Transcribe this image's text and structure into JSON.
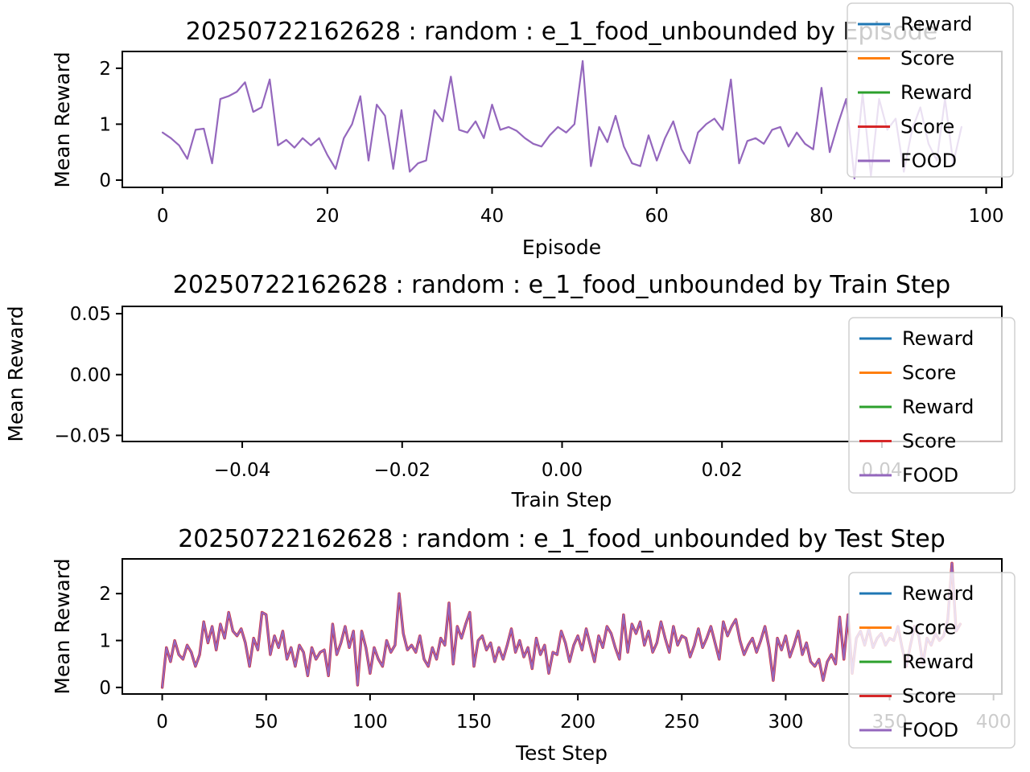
{
  "figure_title": "matplotlib reward figure",
  "chart_data": [
    {
      "type": "line",
      "title": "20250722162628 : random : e_1_food_unbounded by Episode",
      "xlabel": "Episode",
      "ylabel": "Mean Reward",
      "xlim": [
        -4.9,
        101.9
      ],
      "ylim": [
        -0.13,
        2.3
      ],
      "grid": false,
      "x_ticks": [
        {
          "v": 0,
          "label": "0"
        },
        {
          "v": 20,
          "label": "20"
        },
        {
          "v": 40,
          "label": "40"
        },
        {
          "v": 60,
          "label": "60"
        },
        {
          "v": 80,
          "label": "80"
        },
        {
          "v": 100,
          "label": "100"
        }
      ],
      "y_ticks": [
        {
          "v": 0,
          "label": "0"
        },
        {
          "v": 1,
          "label": "1"
        },
        {
          "v": 2,
          "label": "2"
        }
      ],
      "legend_position": "upper right",
      "series": [
        {
          "name": "Reward",
          "color": "#1f77b4",
          "values": []
        },
        {
          "name": "Score",
          "color": "#ff7f0e",
          "values": []
        },
        {
          "name": "Reward",
          "color": "#2ca02c",
          "values": []
        },
        {
          "name": "Score",
          "color": "#d62728",
          "values": []
        },
        {
          "name": "FOOD",
          "color": "#9467bd",
          "x_start": 0,
          "x_step": 1,
          "values": [
            0.85,
            0.75,
            0.62,
            0.38,
            0.9,
            0.92,
            0.3,
            1.45,
            1.5,
            1.58,
            1.75,
            1.22,
            1.3,
            1.8,
            0.62,
            0.72,
            0.58,
            0.75,
            0.62,
            0.75,
            0.45,
            0.2,
            0.75,
            1.0,
            1.5,
            0.35,
            1.35,
            1.15,
            0.2,
            1.25,
            0.15,
            0.3,
            0.35,
            1.25,
            1.05,
            1.85,
            0.9,
            0.85,
            1.05,
            0.75,
            1.35,
            0.9,
            0.95,
            0.88,
            0.75,
            0.65,
            0.6,
            0.8,
            0.95,
            0.85,
            1.0,
            2.13,
            0.25,
            0.95,
            0.68,
            1.15,
            0.6,
            0.3,
            0.25,
            0.8,
            0.35,
            0.75,
            1.05,
            0.55,
            0.3,
            0.85,
            1.0,
            1.1,
            0.9,
            1.8,
            0.3,
            0.7,
            0.75,
            0.65,
            0.9,
            0.95,
            0.6,
            0.85,
            0.65,
            0.55,
            1.65,
            0.5,
            1.0,
            1.45,
            0.03,
            1.55,
            0.08,
            1.45,
            0.9,
            1.1,
            0.15,
            0.9,
            1.3,
            0.65,
            0.35,
            1.45,
            0.3,
            0.95
          ]
        }
      ]
    },
    {
      "type": "line",
      "title": "20250722162628 : random : e_1_food_unbounded by Train Step",
      "xlabel": "Train Step",
      "ylabel": "Mean Reward",
      "xlim": [
        -0.055,
        0.055
      ],
      "ylim": [
        -0.055,
        0.056
      ],
      "grid": false,
      "x_ticks": [
        {
          "v": -0.04,
          "label": "−0.04"
        },
        {
          "v": -0.02,
          "label": "−0.02"
        },
        {
          "v": 0.0,
          "label": "0.00"
        },
        {
          "v": 0.02,
          "label": "0.02"
        },
        {
          "v": 0.04,
          "label": "0.04"
        }
      ],
      "y_ticks": [
        {
          "v": 0.05,
          "label": "0.05"
        },
        {
          "v": 0.0,
          "label": "0.00"
        },
        {
          "v": -0.05,
          "label": "−0.05"
        }
      ],
      "legend_position": "upper right",
      "series": [
        {
          "name": "Reward",
          "color": "#1f77b4",
          "values": []
        },
        {
          "name": "Score",
          "color": "#ff7f0e",
          "values": []
        },
        {
          "name": "Reward",
          "color": "#2ca02c",
          "values": []
        },
        {
          "name": "Score",
          "color": "#d62728",
          "values": []
        },
        {
          "name": "FOOD",
          "color": "#9467bd",
          "values": []
        }
      ]
    },
    {
      "type": "line",
      "title": "20250722162628 : random : e_1_food_unbounded by Test Step",
      "xlabel": "Test Step",
      "ylabel": "Mean Reward",
      "xlim": [
        -19.2,
        404.0
      ],
      "ylim": [
        -0.14,
        2.74
      ],
      "grid": false,
      "x_ticks": [
        {
          "v": 0,
          "label": "0"
        },
        {
          "v": 50,
          "label": "50"
        },
        {
          "v": 100,
          "label": "100"
        },
        {
          "v": 150,
          "label": "150"
        },
        {
          "v": 200,
          "label": "200"
        },
        {
          "v": 250,
          "label": "250"
        },
        {
          "v": 300,
          "label": "300"
        },
        {
          "v": 350,
          "label": "350"
        },
        {
          "v": 400,
          "label": "400"
        }
      ],
      "y_ticks": [
        {
          "v": 0,
          "label": "0"
        },
        {
          "v": 1,
          "label": "1"
        },
        {
          "v": 2,
          "label": "2"
        }
      ],
      "legend_position": "upper right",
      "series": [
        {
          "name": "Reward",
          "color": "#1f77b4",
          "values": []
        },
        {
          "name": "Score",
          "color": "#ff7f0e",
          "values": []
        },
        {
          "name": "Reward",
          "color": "#2ca02c",
          "values": []
        },
        {
          "name": "Score",
          "color": "#d62728",
          "same_as": 4,
          "values": []
        },
        {
          "name": "FOOD",
          "color": "#9467bd",
          "x_start": 0,
          "x_step": 2,
          "values": [
            0.0,
            0.85,
            0.55,
            1.0,
            0.7,
            0.6,
            0.9,
            0.75,
            0.45,
            0.7,
            1.4,
            0.95,
            1.3,
            0.8,
            1.35,
            1.05,
            1.6,
            1.2,
            1.1,
            1.25,
            0.95,
            0.45,
            1.05,
            0.8,
            1.6,
            1.55,
            0.7,
            1.1,
            0.85,
            1.2,
            0.6,
            0.85,
            0.45,
            0.9,
            0.75,
            0.25,
            0.85,
            0.6,
            0.75,
            0.8,
            0.25,
            1.35,
            0.7,
            0.95,
            1.3,
            0.85,
            1.2,
            0.05,
            1.2,
            0.85,
            0.3,
            0.85,
            0.6,
            0.45,
            1.0,
            0.75,
            0.9,
            2.0,
            1.15,
            0.8,
            0.9,
            0.75,
            1.1,
            0.6,
            0.45,
            0.85,
            0.6,
            1.05,
            0.9,
            1.8,
            0.5,
            1.3,
            1.05,
            1.35,
            1.6,
            0.45,
            1.0,
            1.1,
            0.8,
            0.95,
            0.55,
            0.85,
            0.6,
            0.9,
            1.25,
            0.75,
            1.0,
            0.65,
            0.85,
            0.4,
            1.05,
            0.7,
            0.9,
            0.3,
            0.75,
            0.7,
            1.2,
            0.95,
            0.55,
            0.9,
            1.1,
            0.8,
            1.25,
            0.9,
            0.55,
            1.1,
            0.85,
            1.3,
            1.15,
            0.85,
            0.6,
            1.55,
            0.75,
            1.35,
            1.15,
            1.4,
            0.9,
            1.2,
            0.75,
            0.95,
            1.4,
            1.05,
            0.75,
            1.3,
            0.9,
            1.1,
            1.05,
            0.65,
            0.9,
            1.25,
            0.85,
            1.05,
            1.3,
            0.95,
            0.6,
            1.4,
            1.1,
            1.3,
            1.45,
            1.0,
            0.7,
            0.9,
            1.05,
            0.75,
            1.0,
            1.3,
            0.85,
            0.15,
            1.05,
            0.8,
            1.1,
            0.65,
            0.9,
            1.2,
            0.7,
            0.95,
            0.55,
            0.45,
            0.6,
            0.15,
            0.55,
            0.7,
            0.5,
            1.5,
            0.6,
            1.55,
            0.3,
            1.05,
            1.2,
            0.9,
            1.25,
            0.85,
            1.05,
            1.15,
            0.9,
            1.05,
            1.0,
            1.3,
            0.85,
            0.45,
            0.9,
            1.3,
            1.1,
            0.5,
            1.05,
            0.9,
            1.15,
            1.0,
            1.1,
            1.45,
            2.65,
            1.2,
            1.35
          ]
        }
      ]
    }
  ]
}
